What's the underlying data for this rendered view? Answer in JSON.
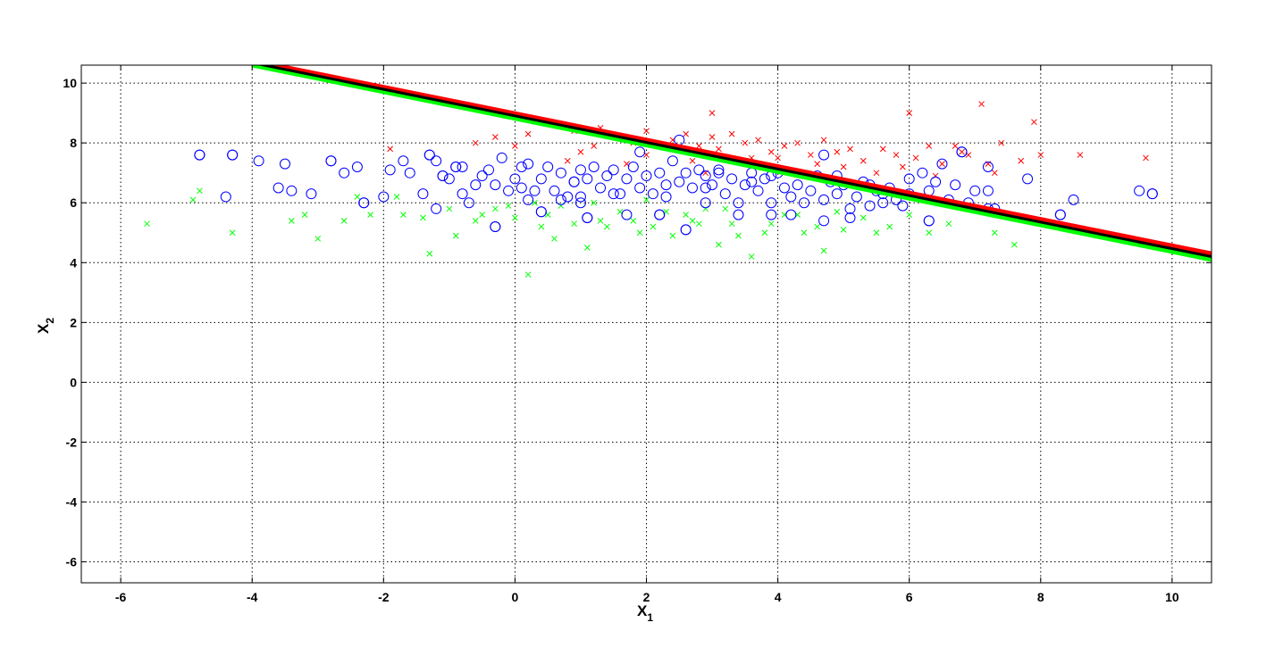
{
  "chart_data": {
    "type": "scatter",
    "xlim": [
      -6.6,
      10.6
    ],
    "ylim": [
      -6.7,
      10.6
    ],
    "xticks": [
      -6,
      -4,
      -2,
      0,
      2,
      4,
      6,
      8,
      10
    ],
    "yticks": [
      -6,
      -4,
      -2,
      0,
      2,
      4,
      6,
      8,
      10
    ],
    "xtick_labels": [
      "-6",
      "-4",
      "-2",
      "0",
      "2",
      "4",
      "6",
      "8",
      "10"
    ],
    "ytick_labels": [
      "-6",
      "-4",
      "-2",
      "0",
      "2",
      "4",
      "6",
      "8",
      "10"
    ],
    "xlabel": "X",
    "xlabel_sub": "1",
    "ylabel": "X",
    "ylabel_sub": "2",
    "grid": true,
    "colors": {
      "class_red": "#ff0000",
      "class_green": "#00ff00",
      "marked": "#0000ff",
      "boundary_black": "#000000"
    },
    "lines": [
      {
        "color": "#00ff00",
        "points": [
          [
            -4,
            10.6
          ],
          [
            10.6,
            4.1
          ]
        ]
      },
      {
        "color": "#ff0000",
        "points": [
          [
            -4,
            10.75
          ],
          [
            10.6,
            4.3
          ]
        ]
      },
      {
        "color": "#000000",
        "points": [
          [
            -4,
            10.68
          ],
          [
            10.6,
            4.2
          ]
        ]
      }
    ],
    "series": [
      {
        "marker": "x",
        "color": "#ff0000",
        "points": [
          [
            -1.9,
            7.8
          ],
          [
            -0.6,
            8.0
          ],
          [
            -0.3,
            8.2
          ],
          [
            0.0,
            7.9
          ],
          [
            0.2,
            8.3
          ],
          [
            0.8,
            7.4
          ],
          [
            1.0,
            7.7
          ],
          [
            1.2,
            7.9
          ],
          [
            1.5,
            8.2
          ],
          [
            1.8,
            8.0
          ],
          [
            2.0,
            8.4
          ],
          [
            2.2,
            7.9
          ],
          [
            2.4,
            8.1
          ],
          [
            2.6,
            8.3
          ],
          [
            2.8,
            7.9
          ],
          [
            3.0,
            8.2
          ],
          [
            3.1,
            7.8
          ],
          [
            3.3,
            8.3
          ],
          [
            3.5,
            8.0
          ],
          [
            3.7,
            8.1
          ],
          [
            3.9,
            7.7
          ],
          [
            4.1,
            7.9
          ],
          [
            4.3,
            8.0
          ],
          [
            4.5,
            7.6
          ],
          [
            4.7,
            8.1
          ],
          [
            4.9,
            7.7
          ],
          [
            5.1,
            7.8
          ],
          [
            5.3,
            7.4
          ],
          [
            5.6,
            7.8
          ],
          [
            5.8,
            7.6
          ],
          [
            6.0,
            9.0
          ],
          [
            6.1,
            7.5
          ],
          [
            6.3,
            7.9
          ],
          [
            6.5,
            7.3
          ],
          [
            6.7,
            7.9
          ],
          [
            6.9,
            7.6
          ],
          [
            7.1,
            9.3
          ],
          [
            7.2,
            7.3
          ],
          [
            7.4,
            8.0
          ],
          [
            7.7,
            7.4
          ],
          [
            7.9,
            8.7
          ],
          [
            8.0,
            7.6
          ],
          [
            8.6,
            7.6
          ],
          [
            9.6,
            7.5
          ],
          [
            3.0,
            9.0
          ],
          [
            2.0,
            7.6
          ],
          [
            5.0,
            7.2
          ],
          [
            4.0,
            7.5
          ],
          [
            6.8,
            7.7
          ],
          [
            1.3,
            8.5
          ],
          [
            0.9,
            8.4
          ],
          [
            2.7,
            7.4
          ],
          [
            3.6,
            7.5
          ],
          [
            4.6,
            7.3
          ],
          [
            5.5,
            7.0
          ],
          [
            6.4,
            6.9
          ],
          [
            7.3,
            7.0
          ],
          [
            1.7,
            7.3
          ],
          [
            2.9,
            7.0
          ],
          [
            5.9,
            7.2
          ]
        ]
      },
      {
        "marker": "x",
        "color": "#00ff00",
        "points": [
          [
            -5.6,
            5.3
          ],
          [
            -4.8,
            6.4
          ],
          [
            -4.3,
            5.0
          ],
          [
            -3.2,
            5.6
          ],
          [
            -3.0,
            4.8
          ],
          [
            -2.6,
            5.4
          ],
          [
            -2.2,
            5.6
          ],
          [
            -1.7,
            5.6
          ],
          [
            -1.4,
            5.5
          ],
          [
            -1.3,
            4.3
          ],
          [
            -1.0,
            5.8
          ],
          [
            -0.9,
            4.9
          ],
          [
            -0.6,
            5.4
          ],
          [
            -0.3,
            5.8
          ],
          [
            0.2,
            3.6
          ],
          [
            0.4,
            5.2
          ],
          [
            0.6,
            4.8
          ],
          [
            0.9,
            5.3
          ],
          [
            1.1,
            4.5
          ],
          [
            1.3,
            5.4
          ],
          [
            1.6,
            5.7
          ],
          [
            1.9,
            5.0
          ],
          [
            2.1,
            5.2
          ],
          [
            2.4,
            4.9
          ],
          [
            2.6,
            5.6
          ],
          [
            2.8,
            5.3
          ],
          [
            3.1,
            4.6
          ],
          [
            3.3,
            5.3
          ],
          [
            3.6,
            4.2
          ],
          [
            3.8,
            5.0
          ],
          [
            4.1,
            5.6
          ],
          [
            4.4,
            5.0
          ],
          [
            4.7,
            4.4
          ],
          [
            5.0,
            5.1
          ],
          [
            5.3,
            5.5
          ],
          [
            5.7,
            5.2
          ],
          [
            6.0,
            5.6
          ],
          [
            6.3,
            5.0
          ],
          [
            7.3,
            5.0
          ],
          [
            7.6,
            4.6
          ],
          [
            -3.4,
            5.4
          ],
          [
            -0.5,
            5.6
          ],
          [
            0.0,
            5.5
          ],
          [
            0.7,
            5.9
          ],
          [
            1.8,
            5.4
          ],
          [
            2.9,
            5.8
          ],
          [
            3.9,
            5.3
          ],
          [
            4.9,
            5.7
          ],
          [
            6.6,
            5.3
          ],
          [
            1.4,
            5.2
          ],
          [
            2.3,
            5.7
          ],
          [
            3.4,
            4.9
          ],
          [
            5.5,
            5.0
          ],
          [
            -2.4,
            6.2
          ],
          [
            -1.8,
            6.2
          ],
          [
            0.3,
            6.0
          ],
          [
            1.2,
            6.0
          ],
          [
            2.0,
            6.1
          ],
          [
            3.2,
            5.8
          ],
          [
            4.3,
            5.6
          ],
          [
            -0.1,
            5.9
          ],
          [
            -4.9,
            6.1
          ],
          [
            0.5,
            5.6
          ],
          [
            2.7,
            5.4
          ],
          [
            4.6,
            5.2
          ]
        ]
      },
      {
        "marker": "o",
        "color": "#0000ff",
        "points": [
          [
            -4.8,
            7.6
          ],
          [
            -4.3,
            7.6
          ],
          [
            -3.9,
            7.4
          ],
          [
            -3.5,
            7.3
          ],
          [
            -3.6,
            6.5
          ],
          [
            -3.4,
            6.4
          ],
          [
            -3.1,
            6.3
          ],
          [
            -2.8,
            7.4
          ],
          [
            -2.6,
            7.0
          ],
          [
            -2.4,
            7.2
          ],
          [
            -2.3,
            6.0
          ],
          [
            -2.0,
            6.2
          ],
          [
            -1.9,
            7.1
          ],
          [
            -1.7,
            7.4
          ],
          [
            -1.6,
            7.0
          ],
          [
            -1.4,
            6.3
          ],
          [
            -1.3,
            7.6
          ],
          [
            -1.2,
            7.4
          ],
          [
            -1.1,
            6.9
          ],
          [
            -1.0,
            6.8
          ],
          [
            -0.9,
            7.2
          ],
          [
            -0.8,
            7.2
          ],
          [
            -0.7,
            6.0
          ],
          [
            -0.6,
            6.6
          ],
          [
            -0.5,
            6.9
          ],
          [
            -0.4,
            7.1
          ],
          [
            -0.3,
            6.6
          ],
          [
            -0.2,
            7.5
          ],
          [
            -0.1,
            6.4
          ],
          [
            0.0,
            6.8
          ],
          [
            0.1,
            7.2
          ],
          [
            0.1,
            6.5
          ],
          [
            0.2,
            7.3
          ],
          [
            0.3,
            6.4
          ],
          [
            0.4,
            6.8
          ],
          [
            0.5,
            7.2
          ],
          [
            0.6,
            6.4
          ],
          [
            0.7,
            7.0
          ],
          [
            0.8,
            6.2
          ],
          [
            0.9,
            6.7
          ],
          [
            1.0,
            7.1
          ],
          [
            1.0,
            6.2
          ],
          [
            1.1,
            6.8
          ],
          [
            1.2,
            7.2
          ],
          [
            1.3,
            6.5
          ],
          [
            1.4,
            6.9
          ],
          [
            1.5,
            7.1
          ],
          [
            1.6,
            6.3
          ],
          [
            1.7,
            6.8
          ],
          [
            1.8,
            7.2
          ],
          [
            1.9,
            6.5
          ],
          [
            2.0,
            6.9
          ],
          [
            2.1,
            6.3
          ],
          [
            2.2,
            7.0
          ],
          [
            2.3,
            6.6
          ],
          [
            2.4,
            7.4
          ],
          [
            2.5,
            6.7
          ],
          [
            2.6,
            7.0
          ],
          [
            2.7,
            6.5
          ],
          [
            2.8,
            7.1
          ],
          [
            2.9,
            6.9
          ],
          [
            3.0,
            6.6
          ],
          [
            3.1,
            7.0
          ],
          [
            3.2,
            6.3
          ],
          [
            3.3,
            6.8
          ],
          [
            3.4,
            6.0
          ],
          [
            3.5,
            6.6
          ],
          [
            3.6,
            7.0
          ],
          [
            3.7,
            6.4
          ],
          [
            3.8,
            6.8
          ],
          [
            3.9,
            6.0
          ],
          [
            4.0,
            7.0
          ],
          [
            4.1,
            6.5
          ],
          [
            4.2,
            6.2
          ],
          [
            4.3,
            6.6
          ],
          [
            4.4,
            6.0
          ],
          [
            4.5,
            6.4
          ],
          [
            4.6,
            6.9
          ],
          [
            4.7,
            6.1
          ],
          [
            4.8,
            6.7
          ],
          [
            4.9,
            6.3
          ],
          [
            5.0,
            6.6
          ],
          [
            5.1,
            5.8
          ],
          [
            5.2,
            6.2
          ],
          [
            5.3,
            6.7
          ],
          [
            5.4,
            5.9
          ],
          [
            5.5,
            6.4
          ],
          [
            5.6,
            6.0
          ],
          [
            5.7,
            6.5
          ],
          [
            5.8,
            6.1
          ],
          [
            5.9,
            5.9
          ],
          [
            6.0,
            6.3
          ],
          [
            6.2,
            7.0
          ],
          [
            6.3,
            6.4
          ],
          [
            6.4,
            6.7
          ],
          [
            6.5,
            7.3
          ],
          [
            6.6,
            6.1
          ],
          [
            6.7,
            6.6
          ],
          [
            6.8,
            7.7
          ],
          [
            6.9,
            6.0
          ],
          [
            7.0,
            6.4
          ],
          [
            7.2,
            7.2
          ],
          [
            7.3,
            5.8
          ],
          [
            7.8,
            6.8
          ],
          [
            8.3,
            5.6
          ],
          [
            8.5,
            6.1
          ],
          [
            9.5,
            6.4
          ],
          [
            9.7,
            6.3
          ],
          [
            -0.3,
            5.2
          ],
          [
            1.1,
            5.5
          ],
          [
            2.5,
            8.1
          ],
          [
            2.6,
            5.1
          ],
          [
            4.7,
            7.6
          ],
          [
            3.9,
            5.6
          ],
          [
            2.2,
            5.6
          ],
          [
            1.7,
            5.6
          ],
          [
            0.4,
            5.7
          ],
          [
            -1.2,
            5.8
          ],
          [
            6.3,
            5.4
          ],
          [
            5.1,
            5.5
          ],
          [
            4.2,
            5.6
          ],
          [
            3.4,
            5.6
          ],
          [
            2.9,
            6.0
          ],
          [
            0.7,
            6.1
          ],
          [
            1.9,
            7.7
          ],
          [
            6.0,
            6.8
          ],
          [
            7.2,
            6.4
          ],
          [
            5.6,
            6.3
          ],
          [
            4.9,
            6.9
          ],
          [
            3.6,
            6.7
          ],
          [
            2.3,
            6.2
          ],
          [
            0.2,
            6.1
          ],
          [
            -0.8,
            6.3
          ]
        ]
      },
      {
        "marker": "o",
        "color": "#0000ff",
        "points": [
          [
            -4.8,
            7.6
          ],
          [
            -4.3,
            7.6
          ],
          [
            -2.8,
            7.4
          ],
          [
            -2.3,
            6.0
          ],
          [
            -4.4,
            6.2
          ],
          [
            -1.3,
            7.6
          ],
          [
            -1.1,
            6.9
          ],
          [
            -0.9,
            7.2
          ],
          [
            -0.3,
            5.2
          ],
          [
            0.4,
            5.7
          ],
          [
            1.1,
            5.5
          ],
          [
            1.5,
            6.3
          ],
          [
            2.2,
            5.6
          ],
          [
            2.6,
            5.1
          ],
          [
            3.1,
            7.1
          ],
          [
            3.9,
            6.9
          ],
          [
            4.7,
            5.4
          ],
          [
            5.4,
            6.6
          ],
          [
            6.3,
            5.4
          ],
          [
            7.2,
            5.8
          ],
          [
            8.3,
            5.6
          ],
          [
            9.7,
            6.3
          ],
          [
            1.0,
            6.0
          ],
          [
            2.9,
            6.5
          ],
          [
            0.9,
            6.7
          ],
          [
            6.8,
            7.7
          ]
        ]
      }
    ]
  }
}
